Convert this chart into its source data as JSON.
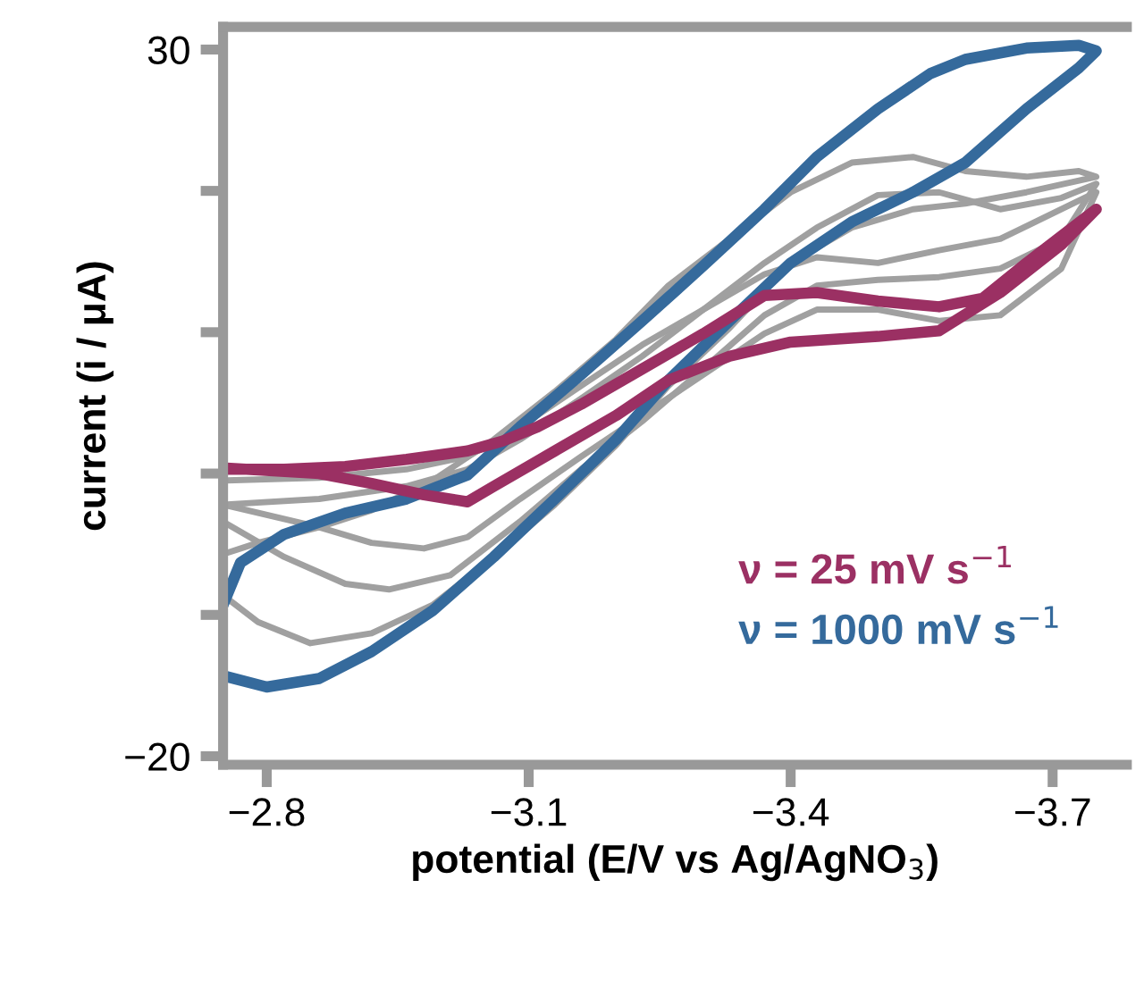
{
  "chart_data": {
    "type": "line",
    "xlabel": "potential (E/V vs Ag/AgNO$_{3}$)",
    "ylabel": "current (i / μA)",
    "xlim": [
      -2.75,
      -3.785
    ],
    "ylim": [
      -20.6,
      31.6
    ],
    "xticks": [
      {
        "value": -2.8,
        "label": "−2.8"
      },
      {
        "value": -3.1,
        "label": "−3.1"
      },
      {
        "value": -3.4,
        "label": "−3.4"
      },
      {
        "value": -3.7,
        "label": "−3.7"
      }
    ],
    "yticks": [
      30,
      {
        "value": 20,
        "label": null
      },
      {
        "value": 10,
        "label": null
      },
      {
        "value": 0,
        "label": null
      },
      {
        "value": -10,
        "label": null
      },
      {
        "value": -20,
        "label": "−20"
      }
    ],
    "grid": false,
    "legend": "bottom right",
    "marker": "none",
    "line_style": "solid",
    "series": [
      {
        "color": "#a0a0a0",
        "x": [
          -2.75,
          -2.86,
          -2.92,
          -2.98,
          -3.03,
          -3.09,
          -3.16,
          -3.23,
          -3.3,
          -3.37,
          -3.43,
          -3.5,
          -3.57,
          -3.64,
          -3.71,
          -3.75,
          -3.71,
          -3.64,
          -3.57,
          -3.5,
          -3.43,
          -3.37,
          -3.3,
          -3.23,
          -3.16,
          -3.09,
          -3.03,
          -2.96,
          -2.86,
          -2.75
        ],
        "values": [
          -2.2,
          -3.8,
          -4.9,
          -5.3,
          -4.5,
          -1.8,
          1.2,
          4.1,
          7.0,
          9.9,
          11.6,
          11.6,
          10.8,
          11.2,
          14.5,
          19.9,
          18.7,
          16.6,
          15.8,
          14.9,
          15.3,
          14.1,
          11.6,
          9.1,
          6.2,
          3.3,
          1.2,
          0.3,
          -0.3,
          -0.5
        ]
      },
      {
        "color": "#a0a0a0",
        "x": [
          -2.75,
          -2.82,
          -2.89,
          -2.94,
          -3.01,
          -3.09,
          -3.16,
          -3.23,
          -3.3,
          -3.37,
          -3.43,
          -3.5,
          -3.57,
          -3.64,
          -3.71,
          -3.75,
          -3.71,
          -3.64,
          -3.57,
          -3.5,
          -3.43,
          -3.37,
          -3.3,
          -3.23,
          -3.16,
          -3.09,
          -3.03,
          -2.96,
          -2.86,
          -2.75
        ],
        "values": [
          -3.4,
          -5.9,
          -7.8,
          -8.2,
          -7.2,
          -3.4,
          0.3,
          3.7,
          7.4,
          11.2,
          13.3,
          13.7,
          13.9,
          14.5,
          16.6,
          20.5,
          19.5,
          18.7,
          19.9,
          19.7,
          17.4,
          14.9,
          11.6,
          8.3,
          5.3,
          2.4,
          0.3,
          -0.9,
          -1.8,
          -2.2
        ]
      },
      {
        "color": "#a0a0a0",
        "x": [
          -2.75,
          -2.79,
          -2.85,
          -2.92,
          -2.99,
          -3.06,
          -3.13,
          -3.2,
          -3.26,
          -3.33,
          -3.4,
          -3.47,
          -3.54,
          -3.6,
          -3.67,
          -3.75,
          -3.73,
          -3.67,
          -3.6,
          -3.54,
          -3.47,
          -3.4,
          -3.33,
          -3.26,
          -3.2,
          -3.13,
          -3.06,
          -2.99,
          -2.92,
          -2.86,
          -2.79,
          -2.75
        ],
        "values": [
          -8.6,
          -10.5,
          -12.0,
          -11.3,
          -9.3,
          -5.9,
          -2.2,
          2.0,
          6.2,
          10.3,
          14.9,
          17.4,
          18.7,
          19.1,
          19.9,
          21.0,
          21.4,
          21.0,
          21.4,
          22.4,
          22.0,
          19.9,
          16.6,
          13.3,
          9.5,
          5.8,
          2.4,
          -0.5,
          -2.6,
          -3.8,
          -4.9,
          -5.7
        ]
      },
      {
        "name": "ν = 1000 mV s$^{−1}$",
        "color": "#356a9c",
        "x": [
          -2.75,
          -2.8,
          -2.86,
          -2.92,
          -2.99,
          -3.06,
          -3.13,
          -3.2,
          -3.26,
          -3.33,
          -3.4,
          -3.47,
          -3.54,
          -3.6,
          -3.67,
          -3.73,
          -3.75,
          -3.73,
          -3.67,
          -3.6,
          -3.56,
          -3.5,
          -3.43,
          -3.37,
          -3.3,
          -3.23,
          -3.16,
          -3.09,
          -3.03,
          -2.96,
          -2.89,
          -2.82,
          -2.77,
          -2.75
        ],
        "values": [
          -14.3,
          -15.1,
          -14.5,
          -12.6,
          -9.7,
          -5.9,
          -1.8,
          2.4,
          6.6,
          10.8,
          14.9,
          17.8,
          19.9,
          22.0,
          25.8,
          28.7,
          29.9,
          30.3,
          30.1,
          29.3,
          28.3,
          25.8,
          22.4,
          18.7,
          14.7,
          10.8,
          7.0,
          3.3,
          -0.1,
          -1.8,
          -2.8,
          -4.3,
          -6.3,
          -9.3
        ]
      },
      {
        "name": "ν = 25 mV s$^{−1}$",
        "color": "#9b3063",
        "x": [
          -2.75,
          -2.82,
          -2.89,
          -2.96,
          -3.03,
          -3.07,
          -3.11,
          -3.16,
          -3.23,
          -3.3,
          -3.37,
          -3.43,
          -3.5,
          -3.57,
          -3.62,
          -3.67,
          -3.75,
          -3.71,
          -3.64,
          -3.57,
          -3.5,
          -3.4,
          -3.33,
          -3.26,
          -3.2,
          -3.13,
          -3.06,
          -3.03,
          -2.98,
          -2.92,
          -2.86,
          -2.75
        ],
        "values": [
          0.3,
          0.3,
          0.5,
          1.0,
          1.6,
          2.3,
          3.3,
          4.9,
          7.4,
          9.9,
          12.6,
          12.8,
          12.2,
          11.8,
          12.4,
          14.9,
          18.7,
          16.2,
          12.8,
          10.1,
          9.7,
          9.3,
          8.3,
          6.6,
          4.1,
          1.6,
          -0.9,
          -2.0,
          -1.5,
          -0.7,
          0.0,
          0.4
        ]
      }
    ]
  }
}
